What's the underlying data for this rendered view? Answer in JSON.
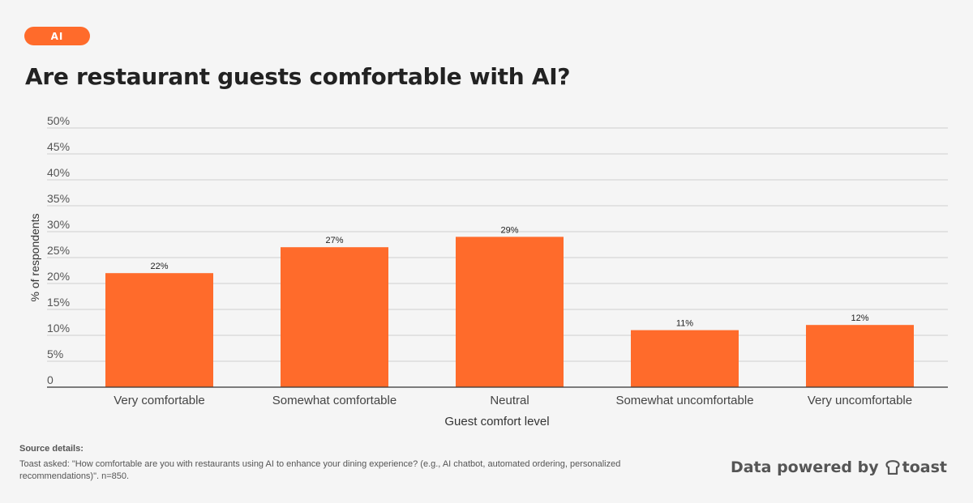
{
  "badge": "AI",
  "title": "Are restaurant guests comfortable with AI?",
  "chart_data": {
    "type": "bar",
    "categories": [
      "Very comfortable",
      "Somewhat comfortable",
      "Neutral",
      "Somewhat uncomfortable",
      "Very uncomfortable"
    ],
    "values": [
      22,
      27,
      29,
      11,
      12
    ],
    "data_labels": [
      "22%",
      "27%",
      "29%",
      "11%",
      "12%"
    ],
    "xlabel": "Guest comfort level",
    "ylabel": "% of respondents",
    "ylim": [
      0,
      50
    ],
    "yticks": [
      "0",
      "5%",
      "10%",
      "15%",
      "20%",
      "25%",
      "30%",
      "35%",
      "40%",
      "45%",
      "50%"
    ],
    "grid": true,
    "bar_color": "#ff6b2b"
  },
  "source": {
    "heading": "Source details:",
    "text": "Toast asked: \"How comfortable are you with restaurants using AI to enhance your dining experience? (e.g., AI chatbot, automated ordering, personalized recommendations)\". n=850."
  },
  "footer": {
    "powered_by": "Data powered by",
    "brand": "toast",
    "brand_icon": "toast-logo-icon"
  },
  "colors": {
    "accent": "#ff6b2b",
    "background": "#f5f5f5"
  }
}
